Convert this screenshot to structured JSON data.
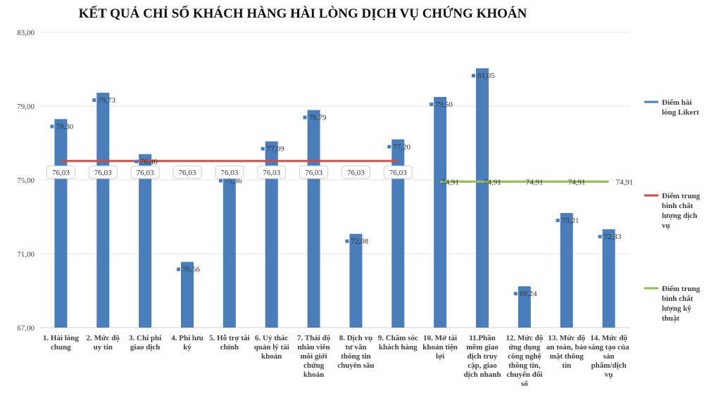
{
  "chart_data": {
    "type": "bar",
    "title": "KẾT QUẢ CHỈ SỐ KHÁCH HÀNG HÀI LÒNG DỊCH VỤ CHỨNG KHOÁN",
    "ylim": [
      67,
      83
    ],
    "yticks": [
      "67,00",
      "71,00",
      "75,00",
      "79,00",
      "83,00"
    ],
    "ytick_values": [
      67,
      71,
      75,
      79,
      83
    ],
    "grid": true,
    "legend_position": "right",
    "categories": [
      [
        "1. Hài lòng",
        "chung"
      ],
      [
        "2. Mức độ",
        "uy tín"
      ],
      [
        "3. Chi phí",
        "giao dịch"
      ],
      [
        "4. Phí lưu",
        "ký"
      ],
      [
        "5. Hỗ trợ tài",
        "chính"
      ],
      [
        "6. Uỷ thác",
        "quản lý tài",
        "khoản"
      ],
      [
        "7. Thái độ",
        "nhân viên",
        "môi giới",
        "chứng",
        "khoán"
      ],
      [
        "8. Dịch vụ",
        "tư vấn",
        "thông tin",
        "chuyên sâu"
      ],
      [
        "9. Chăm sóc",
        "khách hàng"
      ],
      [
        "10. Mở tài",
        "khoản tiện",
        "lợi"
      ],
      [
        "11.Phần",
        "mềm giao",
        "dịch truy",
        "cập, giao",
        "dịch nhanh"
      ],
      [
        "12. Mức độ",
        "ứng dụng",
        "công nghệ",
        "thông tin,",
        "chuyển đổi",
        "số"
      ],
      [
        "13. Mức độ",
        "an toàn, bảo",
        "mật thông",
        "tin"
      ],
      [
        "14. Mức độ",
        "sáng tạo của",
        "sản",
        "phẩm/dịch",
        "vụ"
      ]
    ],
    "series": [
      {
        "name": [
          "Điểm hài",
          "lòng Likert"
        ],
        "type": "bar",
        "color": "#4a7ebb",
        "values": [
          78.3,
          79.73,
          76.4,
          70.56,
          75.36,
          77.09,
          78.79,
          72.08,
          77.2,
          79.5,
          81.05,
          69.24,
          73.21,
          72.33
        ],
        "labels": [
          "78,30",
          "79,73",
          "76,40",
          "70,56",
          "75,36",
          "77,09",
          "78,79",
          "72,08",
          "77,20",
          "79,50",
          "81,05",
          "69,24",
          "73,21",
          "72,33"
        ]
      },
      {
        "name": [
          "Điểm trung",
          "bình chất",
          "lượng dịch",
          "vụ"
        ],
        "type": "line",
        "color": "#c0504d",
        "values": [
          76.03,
          76.03,
          76.03,
          76.03,
          76.03,
          76.03,
          76.03,
          76.03,
          76.03,
          null,
          null,
          null,
          null,
          null
        ],
        "label": "76,03"
      },
      {
        "name": [
          "Điểm trung",
          "bình chất",
          "lượng kỹ",
          "thuật"
        ],
        "type": "line",
        "color": "#9bbb59",
        "values": [
          null,
          null,
          null,
          null,
          null,
          null,
          null,
          null,
          null,
          74.91,
          74.91,
          74.91,
          74.91,
          74.91
        ],
        "label": "74,91"
      }
    ]
  }
}
